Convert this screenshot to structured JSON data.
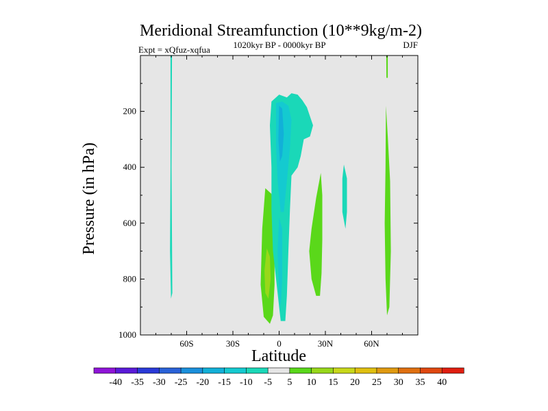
{
  "chart_data": {
    "type": "contour",
    "title": "Meridional Streamfunction (10**9kg/m-2)",
    "left_annotation": "Expt = xQfuz-xqfua",
    "center_annotation": "1020kyr BP - 0000kyr BP",
    "right_annotation": "DJF",
    "xlabel": "Latitude",
    "ylabel": "Pressure (in hPa)",
    "x_range": [
      -90,
      90
    ],
    "y_range": [
      0,
      1000
    ],
    "y_inverted": true,
    "x_ticks": [
      {
        "value": -60,
        "label": "60S"
      },
      {
        "value": -30,
        "label": "30S"
      },
      {
        "value": 0,
        "label": "0"
      },
      {
        "value": 30,
        "label": "30N"
      },
      {
        "value": 60,
        "label": "60N"
      }
    ],
    "y_ticks": [
      200,
      400,
      600,
      800,
      1000
    ],
    "background_color": "#e6e6e6",
    "colorbar": {
      "levels": [
        -40,
        -35,
        -30,
        -25,
        -20,
        -15,
        -10,
        -5,
        5,
        10,
        15,
        20,
        25,
        30,
        35,
        40
      ],
      "colors": [
        "#8f14d8",
        "#5a1ad8",
        "#2a3ad8",
        "#2a62d8",
        "#1a90dc",
        "#12b0d8",
        "#14cad0",
        "#1ad8b8",
        "#e6e6e6",
        "#5ad81a",
        "#98d81a",
        "#c8d81a",
        "#e0c010",
        "#e09a10",
        "#e07010",
        "#e04810",
        "#e01e10"
      ]
    },
    "regions": [
      {
        "name": "band-65S",
        "level": -5,
        "points": [
          [
            -70.5,
            0
          ],
          [
            -69.5,
            0
          ],
          [
            -69.8,
            400
          ],
          [
            -69.3,
            850
          ],
          [
            -70.2,
            870
          ],
          [
            -70.8,
            700
          ],
          [
            -70.5,
            400
          ]
        ]
      },
      {
        "name": "band-70N",
        "level": 5,
        "points": [
          [
            69.5,
            0
          ],
          [
            70.5,
            0
          ],
          [
            70.5,
            80
          ],
          [
            69.6,
            80
          ]
        ]
      },
      {
        "name": "band-70N-lower",
        "level": 5,
        "points": [
          [
            69.3,
            180
          ],
          [
            70.5,
            290
          ],
          [
            72,
            450
          ],
          [
            72.5,
            700
          ],
          [
            71.5,
            900
          ],
          [
            70,
            930
          ],
          [
            69,
            800
          ],
          [
            68.5,
            600
          ],
          [
            69,
            400
          ]
        ]
      },
      {
        "name": "band-42N",
        "level": -5,
        "points": [
          [
            42,
            390
          ],
          [
            44,
            440
          ],
          [
            44,
            560
          ],
          [
            43,
            620
          ],
          [
            41,
            560
          ],
          [
            41,
            440
          ]
        ]
      },
      {
        "name": "blob-south-outer",
        "level": 5,
        "points": [
          [
            -9,
            475
          ],
          [
            -5,
            495
          ],
          [
            -3,
            620
          ],
          [
            -3,
            820
          ],
          [
            -4,
            930
          ],
          [
            -6,
            960
          ],
          [
            -10,
            935
          ],
          [
            -12,
            820
          ],
          [
            -11,
            620
          ]
        ]
      },
      {
        "name": "blob-south-inner",
        "level": 10,
        "points": [
          [
            -8,
            690
          ],
          [
            -6,
            720
          ],
          [
            -5.5,
            800
          ],
          [
            -7,
            870
          ],
          [
            -9,
            850
          ],
          [
            -9.5,
            770
          ]
        ]
      },
      {
        "name": "blob-23N",
        "level": 5,
        "points": [
          [
            27,
            420
          ],
          [
            28,
            500
          ],
          [
            28,
            660
          ],
          [
            27.5,
            780
          ],
          [
            26.5,
            860
          ],
          [
            24,
            860
          ],
          [
            21,
            800
          ],
          [
            19.5,
            700
          ],
          [
            21,
            620
          ],
          [
            24,
            510
          ]
        ]
      },
      {
        "name": "core-outer",
        "level": -5,
        "points": [
          [
            -5,
            165
          ],
          [
            0,
            140
          ],
          [
            5,
            150
          ],
          [
            8,
            135
          ],
          [
            12,
            140
          ],
          [
            15,
            160
          ],
          [
            18,
            185
          ],
          [
            22,
            250
          ],
          [
            20,
            290
          ],
          [
            16,
            300
          ],
          [
            14,
            360
          ],
          [
            12,
            400
          ],
          [
            8,
            430
          ],
          [
            7,
            550
          ],
          [
            6,
            700
          ],
          [
            5,
            860
          ],
          [
            4,
            950
          ],
          [
            1,
            950
          ],
          [
            0,
            900
          ],
          [
            -2,
            800
          ],
          [
            -4,
            700
          ],
          [
            -5,
            550
          ],
          [
            -5,
            400
          ],
          [
            -6,
            250
          ]
        ]
      },
      {
        "name": "core-inner",
        "level": -10,
        "points": [
          [
            -2,
            170
          ],
          [
            2,
            165
          ],
          [
            6,
            180
          ],
          [
            8,
            230
          ],
          [
            7,
            330
          ],
          [
            5,
            450
          ],
          [
            3,
            560
          ],
          [
            1,
            560
          ],
          [
            -1,
            450
          ],
          [
            -2,
            320
          ]
        ]
      },
      {
        "name": "core-deep",
        "level": -15,
        "points": [
          [
            0,
            180
          ],
          [
            2,
            190
          ],
          [
            3,
            280
          ],
          [
            2,
            360
          ],
          [
            0.5,
            380
          ],
          [
            -0.5,
            300
          ]
        ]
      },
      {
        "name": "core-lower",
        "level": -10,
        "points": [
          [
            0,
            580
          ],
          [
            2,
            620
          ],
          [
            2,
            800
          ],
          [
            1,
            900
          ],
          [
            0,
            850
          ],
          [
            -1,
            700
          ]
        ]
      }
    ]
  }
}
